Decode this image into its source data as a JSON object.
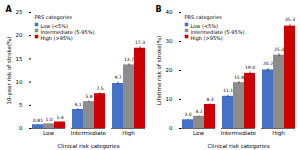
{
  "chart_data": [
    {
      "type": "bar",
      "title": "A",
      "xlabel": "Clinical risk categories",
      "ylabel": "10-year risk of stroke(%)",
      "categories": [
        "Low",
        "Intermediate",
        "High"
      ],
      "series": [
        {
          "name": "Low (<5%)",
          "color": "#4472C4",
          "values": [
            0.81,
            4.1,
            9.7
          ],
          "errors": [
            0.04,
            0.15,
            0.25
          ],
          "value_labels": [
            "0.81",
            "4.1",
            "9.7"
          ]
        },
        {
          "name": "Intermediate (5-95%)",
          "color": "#8C8C8C",
          "values": [
            1.0,
            5.8,
            13.7
          ],
          "errors": [
            0.04,
            0.15,
            0.25
          ],
          "value_labels": [
            "1.0",
            "5.8",
            "13.7"
          ]
        },
        {
          "name": "High (>95%)",
          "color": "#CC0000",
          "values": [
            1.4,
            7.5,
            17.3
          ],
          "errors": [
            0.05,
            0.18,
            0.35
          ],
          "value_labels": [
            "1.4",
            "7.5",
            "17.3"
          ]
        }
      ],
      "legend_title": "PRS categories",
      "ylim": [
        0,
        25
      ],
      "yticks": [
        0,
        5,
        10,
        15,
        20,
        25
      ],
      "grid": false,
      "legend": "upper left",
      "data_labels": true
    },
    {
      "type": "bar",
      "title": "B",
      "xlabel": "Clinical risk categories",
      "ylabel": "Lifetime risk of stroke(%)",
      "categories": [
        "Low",
        "Intermediate",
        "High"
      ],
      "series": [
        {
          "name": "Low (<5%)",
          "color": "#4472C4",
          "values": [
            3.0,
            11.1,
            20.2
          ],
          "errors": [
            0.15,
            0.4,
            0.5
          ],
          "value_labels": [
            "3.0",
            "11.1",
            "20.2"
          ]
        },
        {
          "name": "Intermediate (5-95%)",
          "color": "#8C8C8C",
          "values": [
            4.2,
            15.8,
            25.3
          ],
          "errors": [
            0.15,
            0.4,
            0.5
          ],
          "value_labels": [
            "4.2",
            "15.8",
            "25.3"
          ]
        },
        {
          "name": "High (>95%)",
          "color": "#CC0000",
          "values": [
            8.3,
            19.0,
            35.3
          ],
          "errors": [
            0.25,
            0.5,
            0.7
          ],
          "value_labels": [
            "8.3",
            "19.0",
            "35.3"
          ]
        }
      ],
      "legend_title": "PRS categories",
      "ylim": [
        0,
        40
      ],
      "yticks": [
        0,
        10,
        20,
        30,
        40
      ],
      "grid": false,
      "legend": "upper left",
      "data_labels": true
    }
  ]
}
